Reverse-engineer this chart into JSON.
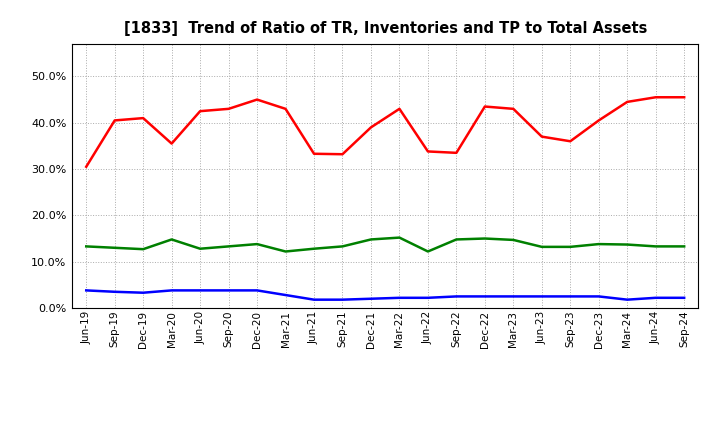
{
  "title": "[1833]  Trend of Ratio of TR, Inventories and TP to Total Assets",
  "x_labels": [
    "Jun-19",
    "Sep-19",
    "Dec-19",
    "Mar-20",
    "Jun-20",
    "Sep-20",
    "Dec-20",
    "Mar-21",
    "Jun-21",
    "Sep-21",
    "Dec-21",
    "Mar-22",
    "Jun-22",
    "Sep-22",
    "Dec-22",
    "Mar-23",
    "Jun-23",
    "Sep-23",
    "Dec-23",
    "Mar-24",
    "Jun-24",
    "Sep-24"
  ],
  "trade_receivables": [
    0.305,
    0.405,
    0.41,
    0.355,
    0.425,
    0.43,
    0.45,
    0.43,
    0.333,
    0.332,
    0.39,
    0.43,
    0.338,
    0.335,
    0.435,
    0.43,
    0.37,
    0.36,
    0.405,
    0.445,
    0.455,
    0.455
  ],
  "inventories": [
    0.038,
    0.035,
    0.033,
    0.038,
    0.038,
    0.038,
    0.038,
    0.028,
    0.018,
    0.018,
    0.02,
    0.022,
    0.022,
    0.025,
    0.025,
    0.025,
    0.025,
    0.025,
    0.025,
    0.018,
    0.022,
    0.022
  ],
  "trade_payables": [
    0.133,
    0.13,
    0.127,
    0.148,
    0.128,
    0.133,
    0.138,
    0.122,
    0.128,
    0.133,
    0.148,
    0.152,
    0.122,
    0.148,
    0.15,
    0.147,
    0.132,
    0.132,
    0.138,
    0.137,
    0.133,
    0.133
  ],
  "tr_color": "#ff0000",
  "inv_color": "#0000ff",
  "tp_color": "#008000",
  "ylim": [
    0.0,
    0.57
  ],
  "yticks": [
    0.0,
    0.1,
    0.2,
    0.3,
    0.4,
    0.5
  ],
  "bg_color": "#ffffff",
  "plot_bg_color": "#ffffff",
  "grid_color": "#aaaaaa",
  "line_width": 1.8
}
